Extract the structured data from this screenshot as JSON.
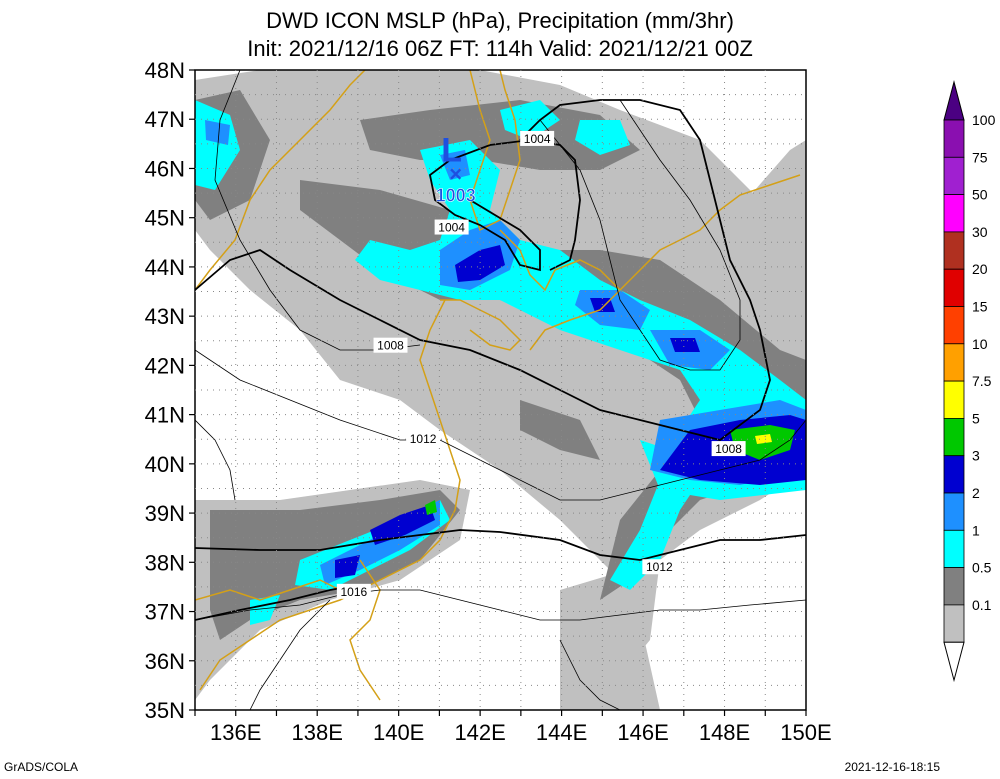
{
  "title": {
    "line1": "DWD ICON MSLP (hPa), Precipitation (mm/3hr)",
    "line2": "Init: 2021/12/16 06Z  FT: 114h  Valid: 2021/12/21 00Z"
  },
  "lat_labels": [
    "48N",
    "47N",
    "46N",
    "45N",
    "44N",
    "43N",
    "42N",
    "41N",
    "40N",
    "39N",
    "38N",
    "37N",
    "36N",
    "35N"
  ],
  "lon_labels": [
    "136E",
    "138E",
    "140E",
    "142E",
    "144E",
    "146E",
    "148E",
    "150E"
  ],
  "low_center": {
    "symbol": "L",
    "marker": "×",
    "value": "1003",
    "lon": 141.4,
    "lat": 45.9
  },
  "isobar_labels": [
    {
      "text": "1004",
      "lon": 143.4,
      "lat": 46.6
    },
    {
      "text": "1004",
      "lon": 141.3,
      "lat": 44.8
    },
    {
      "text": "1008",
      "lon": 139.8,
      "lat": 42.4
    },
    {
      "text": "1012",
      "lon": 140.6,
      "lat": 40.5
    },
    {
      "text": "1008",
      "lon": 148.1,
      "lat": 40.3
    },
    {
      "text": "1012",
      "lon": 146.4,
      "lat": 37.9
    },
    {
      "text": "1016",
      "lon": 138.9,
      "lat": 37.4
    }
  ],
  "colorbar": {
    "labels": [
      "100",
      "75",
      "50",
      "30",
      "20",
      "15",
      "10",
      "7.5",
      "5",
      "3",
      "2",
      "1",
      "0.5",
      "0.1"
    ],
    "colors": [
      "#8a0fb0",
      "#a020d0",
      "#ff00ff",
      "#b03020",
      "#e00000",
      "#ff4000",
      "#ffa000",
      "#ffff00",
      "#00c800",
      "#0000d0",
      "#1e90ff",
      "#00ffff",
      "#808080",
      "#c0c0c0"
    ],
    "top_triangle_color": "#4b0082",
    "bottom_triangle_color": "#ffffff"
  },
  "colors": {
    "coast": "#d4a017",
    "isobar": "#000000",
    "low_label": "#1e50e0"
  },
  "footer": {
    "left": "GrADS/COLA",
    "right": "2021-12-16-18:15"
  }
}
